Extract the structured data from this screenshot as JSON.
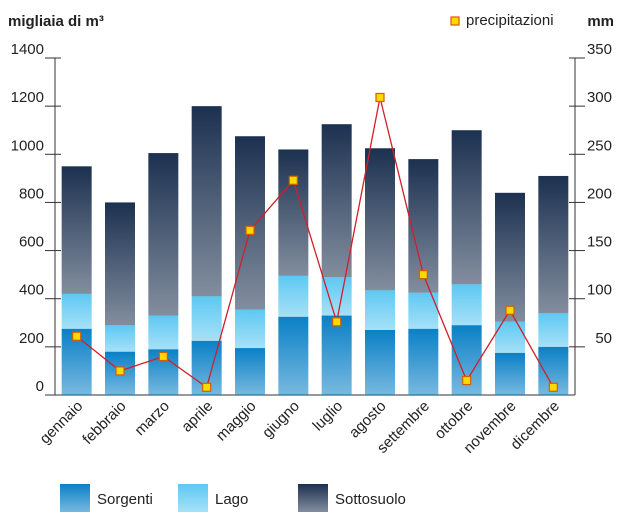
{
  "chart_data": {
    "type": "bar",
    "title": "migliaia di m³",
    "y2_title": "mm",
    "categories": [
      "gennaio",
      "febbraio",
      "marzo",
      "aprile",
      "maggio",
      "giugno",
      "luglio",
      "agosto",
      "settembre",
      "ottobre",
      "novembre",
      "dicembre"
    ],
    "series": [
      {
        "name": "Sorgenti",
        "color": "#0a80c6",
        "values": [
          275,
          180,
          190,
          225,
          195,
          325,
          330,
          270,
          275,
          290,
          175,
          200
        ]
      },
      {
        "name": "Lago",
        "color": "#5ec8f2",
        "values": [
          145,
          110,
          140,
          185,
          160,
          170,
          160,
          165,
          150,
          170,
          130,
          140
        ]
      },
      {
        "name": "Sottosuolo",
        "color": "#1c3150",
        "values": [
          530,
          510,
          675,
          790,
          720,
          525,
          635,
          590,
          555,
          640,
          535,
          570
        ]
      },
      {
        "name": "precipitazioni",
        "type": "line",
        "axis": "y2",
        "color": "#d0202a",
        "marker_color": "#ffd800",
        "values": [
          61,
          25,
          40,
          8,
          171,
          223,
          76,
          309,
          125,
          15,
          88,
          8
        ]
      }
    ],
    "ylim": [
      0,
      1400
    ],
    "yticks": [
      0,
      200,
      400,
      600,
      800,
      1000,
      1200,
      1400
    ],
    "y2lim": [
      0,
      350
    ],
    "y2ticks": [
      50,
      100,
      150,
      200,
      250,
      300,
      350
    ],
    "stacked": true
  }
}
